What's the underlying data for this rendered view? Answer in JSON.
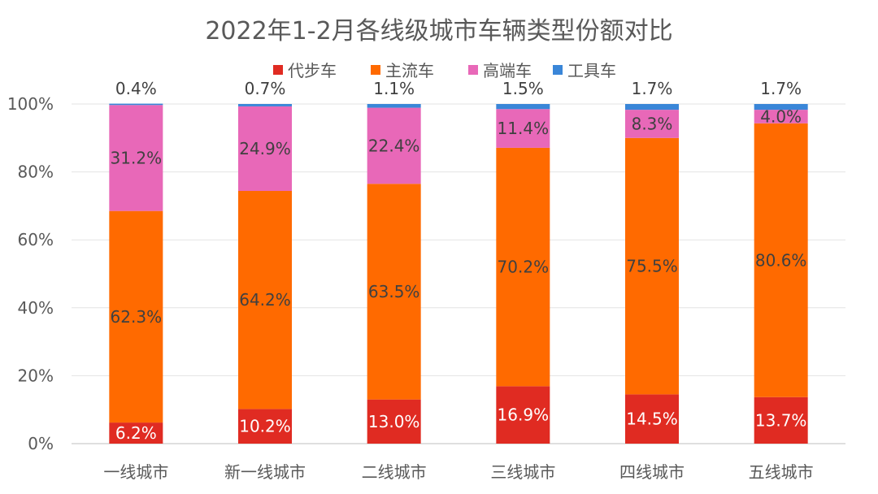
{
  "chart_data": {
    "type": "bar",
    "stacked": true,
    "title": "2022年1-2月各线级城市车辆类型份额对比",
    "categories": [
      "一线城市",
      "新一线城市",
      "二线城市",
      "三线城市",
      "四线城市",
      "五线城市"
    ],
    "series": [
      {
        "name": "代步车",
        "color": "#e02b22",
        "values": [
          6.2,
          10.2,
          13.0,
          16.9,
          14.5,
          13.7
        ],
        "labels": [
          "6.2%",
          "10.2%",
          "13.0%",
          "16.9%",
          "14.5%",
          "13.7%"
        ]
      },
      {
        "name": "主流车",
        "color": "#ff6a00",
        "values": [
          62.3,
          64.2,
          63.5,
          70.2,
          75.5,
          80.6
        ],
        "labels": [
          "62.3%",
          "64.2%",
          "63.5%",
          "70.2%",
          "75.5%",
          "80.6%"
        ]
      },
      {
        "name": "高端车",
        "color": "#e868b8",
        "values": [
          31.2,
          24.9,
          22.4,
          11.4,
          8.3,
          4.0
        ],
        "labels": [
          "31.2%",
          "24.9%",
          "22.4%",
          "11.4%",
          "8.3%",
          "4.0%"
        ]
      },
      {
        "name": "工具车",
        "color": "#3a86d8",
        "values": [
          0.4,
          0.7,
          1.1,
          1.5,
          1.7,
          1.7
        ],
        "labels": [
          "0.4%",
          "0.7%",
          "1.1%",
          "1.5%",
          "1.7%",
          "1.7%"
        ]
      }
    ],
    "yticks": [
      "0%",
      "20%",
      "40%",
      "60%",
      "80%",
      "100%"
    ],
    "ylim": [
      0,
      100
    ],
    "grid": true,
    "legend_position": "top"
  }
}
